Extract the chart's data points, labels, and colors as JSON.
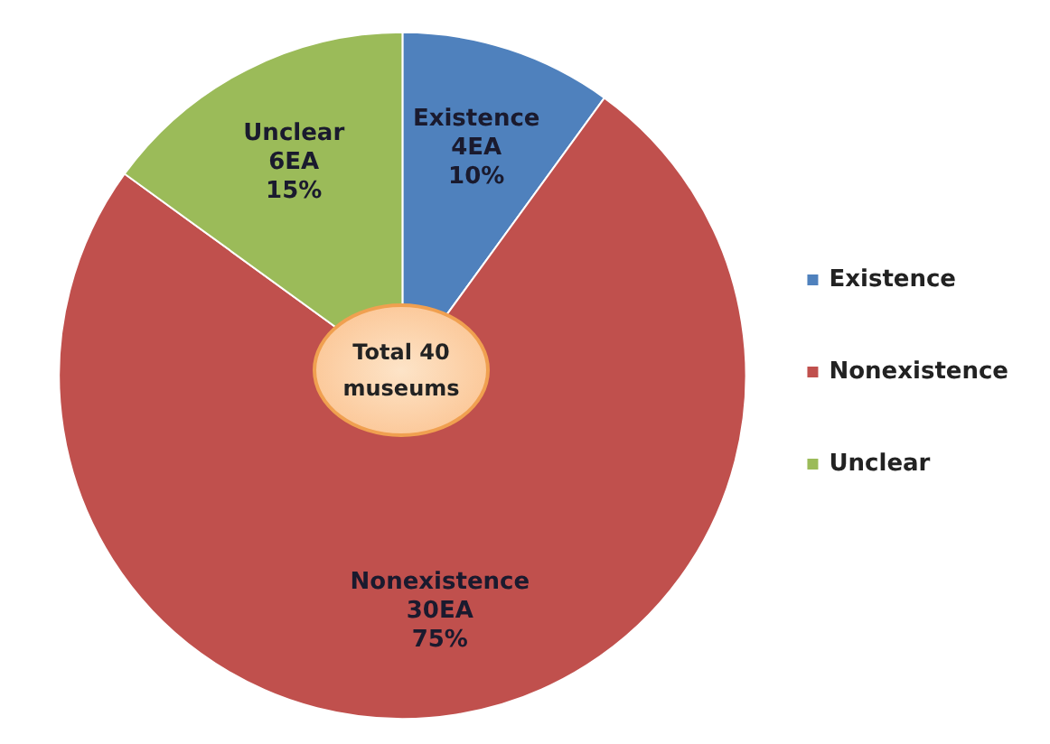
{
  "chart_data": {
    "type": "pie",
    "categories": [
      "Existence",
      "Nonexistence",
      "Unclear"
    ],
    "values": [
      4,
      30,
      6
    ],
    "value_labels": [
      "4EA\n10%",
      "30EA\n75%",
      "6EA\n15%"
    ],
    "colors": [
      "#4f81bd",
      "#c0504d",
      "#9bbb59"
    ],
    "legend": "right",
    "annotations": [
      "Total 40\nmuseums"
    ]
  }
}
